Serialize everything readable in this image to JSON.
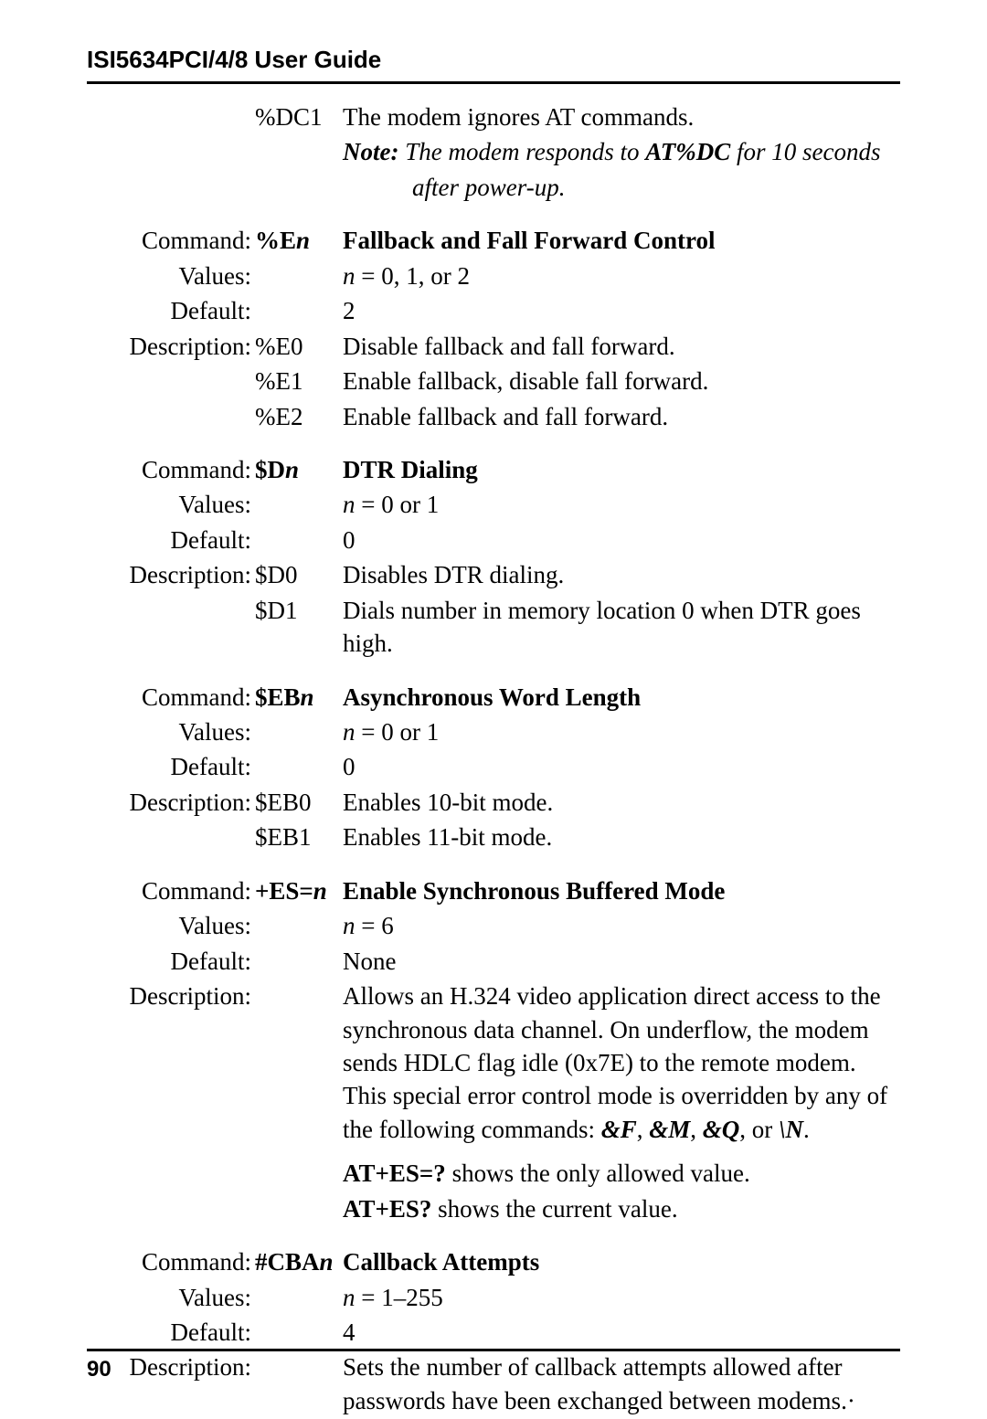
{
  "header": {
    "title": "ISI5634PCI/4/8 User Guide"
  },
  "pageNumber": "90",
  "sections": [
    {
      "preRows": [
        {
          "label": "",
          "code": "%DC1",
          "descParts": [
            {
              "text": "The modem ignores AT commands.",
              "style": ""
            }
          ]
        },
        {
          "label": "",
          "code": "",
          "descParts": [
            {
              "text": "Note:",
              "style": "bold-italic"
            },
            {
              "text": "  The modem responds to ",
              "style": "italic"
            },
            {
              "text": "AT%DC",
              "style": "bold-italic"
            },
            {
              "text": " for 10 seconds",
              "style": "italic"
            }
          ]
        },
        {
          "label": "",
          "code": "",
          "descParts": [
            {
              "text": "after power-up.",
              "style": "italic"
            }
          ],
          "noteIndent": true
        }
      ]
    },
    {
      "rows": [
        {
          "label": "Command:",
          "code": "%E",
          "codeItalic": "n",
          "codeBold": true,
          "descParts": [
            {
              "text": "Fallback and Fall Forward Control",
              "style": "bold"
            }
          ]
        },
        {
          "label": "Values:",
          "code": "",
          "descParts": [
            {
              "text": "n",
              "style": "italic"
            },
            {
              "text": " = 0, 1, or 2",
              "style": ""
            }
          ]
        },
        {
          "label": "Default:",
          "code": "",
          "descParts": [
            {
              "text": "2",
              "style": ""
            }
          ]
        },
        {
          "label": "Description:",
          "code": "%E0",
          "descParts": [
            {
              "text": "Disable fallback and fall forward.",
              "style": ""
            }
          ]
        },
        {
          "label": "",
          "code": "%E1",
          "descParts": [
            {
              "text": "Enable fallback, disable fall forward.",
              "style": ""
            }
          ]
        },
        {
          "label": "",
          "code": "%E2",
          "descParts": [
            {
              "text": "Enable fallback and fall forward.",
              "style": ""
            }
          ]
        }
      ]
    },
    {
      "rows": [
        {
          "label": "Command:",
          "code": "$D",
          "codeItalic": "n",
          "codeBold": true,
          "descParts": [
            {
              "text": "DTR Dialing",
              "style": "bold"
            }
          ]
        },
        {
          "label": "Values:",
          "code": "",
          "descParts": [
            {
              "text": "n",
              "style": "italic"
            },
            {
              "text": " = 0 or 1",
              "style": ""
            }
          ]
        },
        {
          "label": "Default:",
          "code": "",
          "descParts": [
            {
              "text": "0",
              "style": ""
            }
          ]
        },
        {
          "label": "Description:",
          "code": "$D0",
          "descParts": [
            {
              "text": "Disables DTR dialing.",
              "style": ""
            }
          ]
        },
        {
          "label": "",
          "code": "$D1",
          "descParts": [
            {
              "text": "Dials number in memory location 0 when DTR goes high.",
              "style": ""
            }
          ]
        }
      ]
    },
    {
      "rows": [
        {
          "label": "Command:",
          "code": "$EB",
          "codeItalic": "n",
          "codeBold": true,
          "descParts": [
            {
              "text": "Asynchronous Word Length",
              "style": "bold"
            }
          ]
        },
        {
          "label": "Values:",
          "code": "",
          "descParts": [
            {
              "text": "n",
              "style": "italic"
            },
            {
              "text": " = 0 or 1",
              "style": ""
            }
          ]
        },
        {
          "label": "Default:",
          "code": "",
          "descParts": [
            {
              "text": "0",
              "style": ""
            }
          ]
        },
        {
          "label": "Description:",
          "code": "$EB0",
          "descParts": [
            {
              "text": "Enables 10-bit mode.",
              "style": ""
            }
          ]
        },
        {
          "label": "",
          "code": "$EB1",
          "descParts": [
            {
              "text": "Enables 11-bit mode.",
              "style": ""
            }
          ]
        }
      ]
    },
    {
      "rows": [
        {
          "label": "Command:",
          "code": "+ES=",
          "codeItalic": "n",
          "codeBold": true,
          "descParts": [
            {
              "text": "Enable Synchronous Buffered Mode",
              "style": "bold"
            }
          ]
        },
        {
          "label": "Values:",
          "code": "",
          "descParts": [
            {
              "text": "n",
              "style": "italic"
            },
            {
              "text": " = 6",
              "style": ""
            }
          ]
        },
        {
          "label": "Default:",
          "code": "",
          "descParts": [
            {
              "text": "None",
              "style": ""
            }
          ]
        },
        {
          "label": "Description:",
          "code": "",
          "descParts": [
            {
              "text": "Allows an H.324 video application direct access to the synchronous data channel. On underflow, the modem sends HDLC flag idle (0x7E) to the remote modem. This special error control mode is overridden by any of the following commands: ",
              "style": ""
            },
            {
              "text": "&F",
              "style": "bold-italic"
            },
            {
              "text": ", ",
              "style": ""
            },
            {
              "text": "&M",
              "style": "bold-italic"
            },
            {
              "text": ", ",
              "style": ""
            },
            {
              "text": "&Q",
              "style": "bold-italic"
            },
            {
              "text": ", or ",
              "style": ""
            },
            {
              "text": "\\N",
              "style": "bold-italic"
            },
            {
              "text": ".",
              "style": ""
            }
          ]
        },
        {
          "label": "",
          "code": "",
          "extraTop": true,
          "descParts": [
            {
              "text": "AT+ES=?",
              "style": "bold"
            },
            {
              "text": " shows the only allowed value.",
              "style": ""
            }
          ]
        },
        {
          "label": "",
          "code": "",
          "descParts": [
            {
              "text": "AT+ES?",
              "style": "bold"
            },
            {
              "text": " shows the current value.",
              "style": ""
            }
          ]
        }
      ]
    },
    {
      "rows": [
        {
          "label": "Command:",
          "code": "#CBA",
          "codeItalic": "n",
          "codeBold": true,
          "descParts": [
            {
              "text": "Callback Attempts",
              "style": "bold"
            }
          ]
        },
        {
          "label": "Values:",
          "code": "",
          "descParts": [
            {
              "text": "n",
              "style": "italic"
            },
            {
              "text": " = 1–255",
              "style": ""
            }
          ]
        },
        {
          "label": "Default:",
          "code": "",
          "descParts": [
            {
              "text": "4",
              "style": ""
            }
          ]
        },
        {
          "label": "Description:",
          "code": "",
          "descParts": [
            {
              "text": "Sets the number of callback attempts allowed after passwords have been exchanged between modems.·",
              "style": ""
            }
          ]
        }
      ]
    }
  ]
}
